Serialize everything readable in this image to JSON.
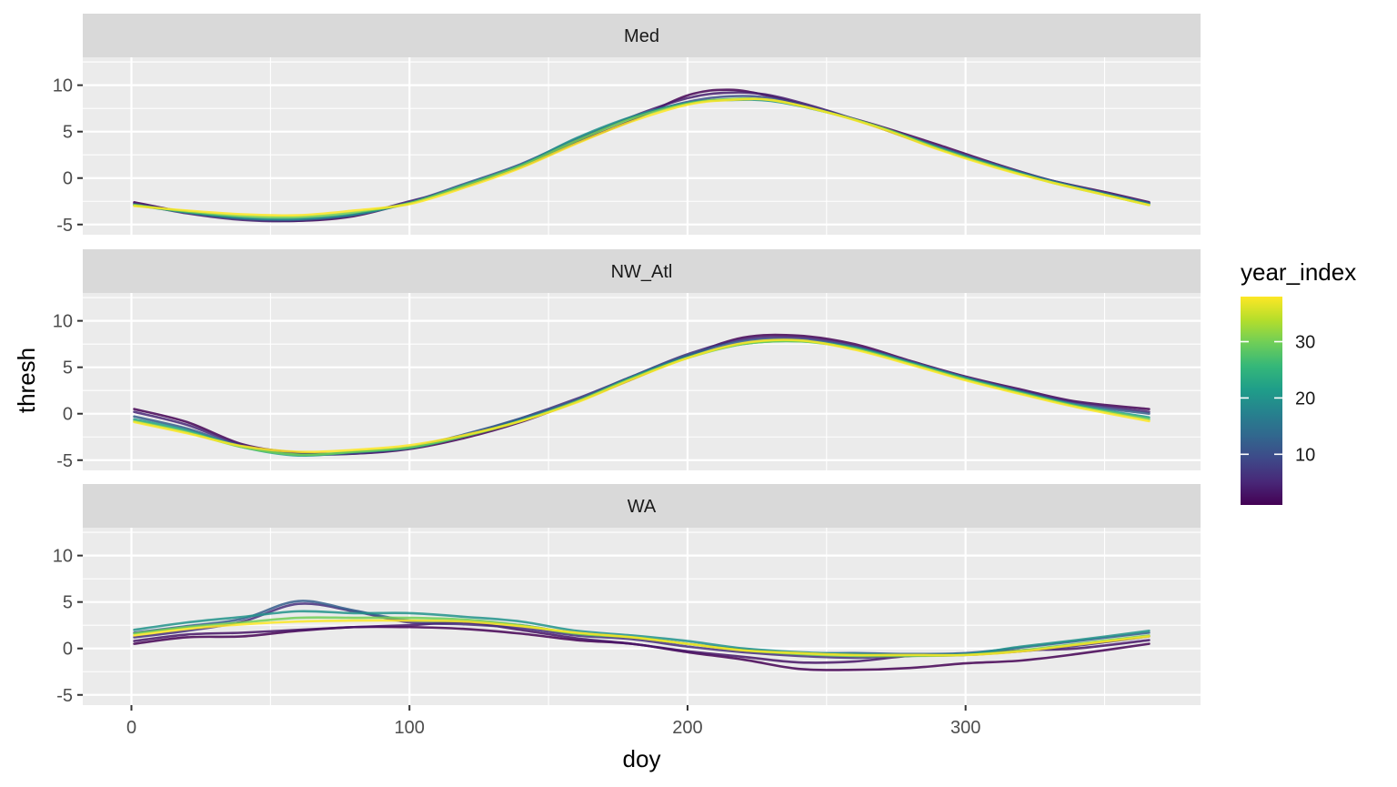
{
  "chart_data": {
    "type": "line",
    "xlabel": "doy",
    "ylabel": "thresh",
    "xlim": [
      0,
      366
    ],
    "ylim": [
      -5,
      12
    ],
    "x_ticks": [
      0,
      100,
      200,
      300
    ],
    "x_tick_labels": [
      "0",
      "100",
      "200",
      "300"
    ],
    "y_ticks": [
      -5,
      0,
      5,
      10
    ],
    "y_tick_labels": [
      "-5",
      "0",
      "5",
      "10"
    ],
    "grid": true,
    "facets": [
      "Med",
      "NW_Atl",
      "WA"
    ],
    "legend": {
      "title": "year_index",
      "type": "colorbar",
      "placement": "right",
      "range": [
        1,
        38
      ],
      "breaks": [
        10,
        20,
        30
      ],
      "break_labels": [
        "10",
        "20",
        "30"
      ],
      "colors": [
        "#440154",
        "#482878",
        "#3e4989",
        "#31688e",
        "#26828e",
        "#1f9e89",
        "#35b779",
        "#6ece58",
        "#b5de2b",
        "#fde725"
      ]
    },
    "panels": [
      {
        "name": "Med",
        "x": [
          1,
          20,
          40,
          60,
          80,
          100,
          120,
          140,
          160,
          180,
          200,
          215,
          230,
          250,
          270,
          290,
          310,
          330,
          350,
          366
        ],
        "series": [
          {
            "year_index": 1,
            "values": [
              -2.6,
              -3.7,
              -4.4,
              -4.6,
              -4.1,
              -2.6,
              -0.8,
              1.2,
              3.8,
              6.2,
              8.9,
              9.5,
              8.8,
              7.2,
              5.5,
              3.6,
              1.6,
              -0.2,
              -1.5,
              -2.6
            ]
          },
          {
            "year_index": 4,
            "values": [
              -2.7,
              -3.8,
              -4.5,
              -4.6,
              -4.0,
              -2.5,
              -0.9,
              1.4,
              4.0,
              6.6,
              8.6,
              9.2,
              8.9,
              7.3,
              5.3,
              3.2,
              1.4,
              -0.3,
              -1.6,
              -2.7
            ]
          },
          {
            "year_index": 10,
            "values": [
              -2.8,
              -3.7,
              -4.4,
              -4.5,
              -4.0,
              -2.6,
              -0.6,
              1.5,
              4.2,
              6.5,
              8.2,
              8.8,
              8.6,
              7.2,
              5.4,
              3.4,
              1.5,
              -0.2,
              -1.6,
              -2.7
            ]
          },
          {
            "year_index": 20,
            "values": [
              -2.9,
              -3.7,
              -4.3,
              -4.4,
              -3.9,
              -2.7,
              -0.7,
              1.4,
              4.3,
              6.6,
              8.1,
              8.4,
              8.3,
              7.1,
              5.4,
              3.3,
              1.4,
              -0.3,
              -1.7,
              -2.8
            ]
          },
          {
            "year_index": 30,
            "values": [
              -2.9,
              -3.6,
              -4.1,
              -4.2,
              -3.7,
              -2.7,
              -0.8,
              1.3,
              4.0,
              6.4,
              8.0,
              8.5,
              8.4,
              7.1,
              5.4,
              3.2,
              1.3,
              -0.4,
              -1.8,
              -2.9
            ]
          },
          {
            "year_index": 38,
            "values": [
              -3.0,
              -3.5,
              -3.9,
              -4.0,
              -3.5,
              -2.8,
              -1.0,
              1.1,
              3.7,
              6.1,
              7.9,
              8.4,
              8.4,
              7.1,
              5.3,
              3.1,
              1.2,
              -0.4,
              -1.8,
              -2.9
            ]
          }
        ]
      },
      {
        "name": "NW_Atl",
        "x": [
          1,
          20,
          40,
          60,
          80,
          100,
          120,
          140,
          160,
          180,
          200,
          220,
          240,
          260,
          280,
          300,
          320,
          340,
          366
        ],
        "series": [
          {
            "year_index": 1,
            "values": [
              0.5,
              -0.9,
              -3.3,
              -4.2,
              -4.3,
              -3.8,
              -2.6,
              -0.9,
              1.3,
              3.7,
              6.2,
              8.2,
              8.4,
              7.5,
              5.7,
              4.0,
              2.6,
              1.3,
              0.5
            ]
          },
          {
            "year_index": 5,
            "values": [
              0.2,
              -1.2,
              -3.4,
              -4.3,
              -4.3,
              -3.7,
              -2.3,
              -0.5,
              1.6,
              4.0,
              6.4,
              8.0,
              8.2,
              7.3,
              5.6,
              3.9,
              2.5,
              1.2,
              0.2
            ]
          },
          {
            "year_index": 12,
            "values": [
              -0.3,
              -1.6,
              -3.5,
              -4.4,
              -4.2,
              -3.6,
              -2.2,
              -0.5,
              1.5,
              4.0,
              6.3,
              7.8,
              8.0,
              7.2,
              5.6,
              3.9,
              2.4,
              1.0,
              0.0
            ]
          },
          {
            "year_index": 22,
            "values": [
              -0.6,
              -1.8,
              -3.6,
              -4.5,
              -4.1,
              -3.7,
              -2.4,
              -0.7,
              1.3,
              3.9,
              6.1,
              7.5,
              7.8,
              7.1,
              5.5,
              3.8,
              2.3,
              0.9,
              -0.4
            ]
          },
          {
            "year_index": 30,
            "values": [
              -0.8,
              -2.0,
              -3.6,
              -4.4,
              -4.1,
              -3.6,
              -2.4,
              -0.8,
              1.3,
              3.8,
              6.0,
              7.5,
              7.8,
              7.0,
              5.4,
              3.7,
              2.2,
              0.8,
              -0.6
            ]
          },
          {
            "year_index": 38,
            "values": [
              -0.9,
              -2.1,
              -3.5,
              -4.1,
              -3.9,
              -3.4,
              -2.3,
              -0.8,
              1.2,
              3.7,
              6.0,
              7.6,
              7.9,
              6.9,
              5.3,
              3.6,
              2.1,
              0.7,
              -0.8
            ]
          }
        ]
      },
      {
        "name": "WA",
        "x": [
          1,
          20,
          40,
          60,
          80,
          100,
          120,
          140,
          160,
          180,
          200,
          220,
          240,
          260,
          280,
          300,
          320,
          340,
          366
        ],
        "series": [
          {
            "year_index": 1,
            "values": [
              0.5,
              1.2,
              1.3,
              1.9,
              2.3,
              2.3,
              2.1,
              1.6,
              0.9,
              0.5,
              -0.4,
              -1.2,
              -2.2,
              -2.3,
              -2.1,
              -1.6,
              -1.3,
              -0.6,
              0.5
            ]
          },
          {
            "year_index": 3,
            "values": [
              0.8,
              1.5,
              1.7,
              2.0,
              2.3,
              2.5,
              2.8,
              2.0,
              1.1,
              0.5,
              -0.3,
              -0.9,
              -1.5,
              -1.4,
              -0.8,
              -0.6,
              -0.2,
              0.0,
              0.9
            ]
          },
          {
            "year_index": 6,
            "values": [
              1.2,
              1.9,
              2.9,
              4.8,
              4.0,
              2.8,
              2.6,
              2.2,
              1.4,
              1.0,
              0.2,
              -0.4,
              -0.8,
              -1.0,
              -0.8,
              -0.7,
              -0.3,
              0.3,
              1.3
            ]
          },
          {
            "year_index": 12,
            "values": [
              1.7,
              2.4,
              3.2,
              5.1,
              4.1,
              3.0,
              2.9,
              2.5,
              1.6,
              1.2,
              0.5,
              -0.1,
              -0.5,
              -0.5,
              -0.6,
              -0.5,
              0.1,
              0.8,
              1.7
            ]
          },
          {
            "year_index": 20,
            "values": [
              2.0,
              2.8,
              3.4,
              4.0,
              3.8,
              3.8,
              3.4,
              2.9,
              1.9,
              1.4,
              0.8,
              0.0,
              -0.4,
              -0.6,
              -0.7,
              -0.6,
              0.2,
              0.9,
              1.9
            ]
          },
          {
            "year_index": 30,
            "values": [
              1.6,
              2.3,
              2.8,
              3.3,
              3.3,
              3.3,
              3.1,
              2.5,
              1.6,
              1.2,
              0.5,
              -0.2,
              -0.6,
              -0.8,
              -0.8,
              -0.7,
              -0.2,
              0.5,
              1.4
            ]
          },
          {
            "year_index": 38,
            "values": [
              1.4,
              2.1,
              2.6,
              2.9,
              3.0,
              3.0,
              2.9,
              2.4,
              1.7,
              1.2,
              0.5,
              -0.2,
              -0.5,
              -0.7,
              -0.7,
              -0.7,
              -0.3,
              0.4,
              1.3
            ]
          }
        ]
      }
    ]
  }
}
